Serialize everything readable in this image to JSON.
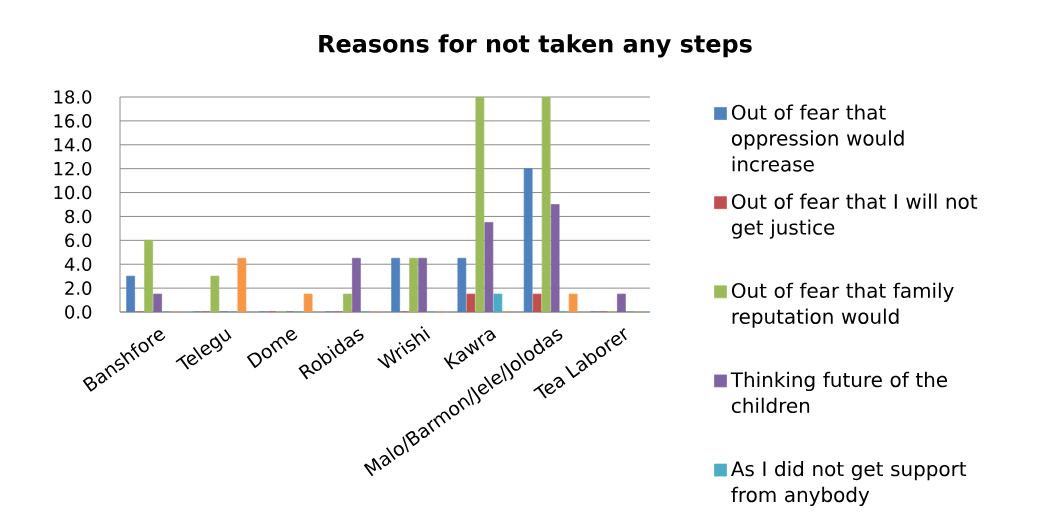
{
  "chart_data": {
    "type": "bar",
    "title": "Reasons for not taken any steps",
    "categories": [
      "Banshfore",
      "Telegu",
      "Dome",
      "Robidas",
      "Wrishi",
      "Kawra",
      "Malo/Barmon/Jele/Jolodas",
      "Tea Laborer"
    ],
    "series": [
      {
        "name": "Out of fear that oppression would increase",
        "color": "#4f81bd",
        "values": [
          3,
          0,
          0,
          0,
          4.5,
          4.5,
          12,
          0
        ]
      },
      {
        "name": "Out of fear that I will not get justice",
        "color": "#c0504d",
        "values": [
          0,
          0,
          0,
          0,
          0,
          1.5,
          1.5,
          0
        ]
      },
      {
        "name": "Out of fear that family reputation would",
        "color": "#9bbb59",
        "values": [
          6,
          3,
          0,
          1.5,
          4.5,
          18,
          18,
          0
        ]
      },
      {
        "name": "Thinking future of the children",
        "color": "#8064a2",
        "values": [
          1.5,
          0,
          0,
          4.5,
          4.5,
          7.5,
          9,
          1.5
        ]
      },
      {
        "name": "As I did not get support from anybody",
        "color": "#4bacc6",
        "values": [
          0,
          0,
          0,
          0,
          0,
          1.5,
          0,
          0
        ]
      },
      {
        "color": "#f79646",
        "values": [
          0,
          4.5,
          1.5,
          0,
          0,
          0,
          1.5,
          0
        ]
      }
    ],
    "ylim": [
      0,
      18
    ],
    "yticks": [
      {
        "value": 0,
        "label": "0.0"
      },
      {
        "value": 2,
        "label": "2.0"
      },
      {
        "value": 4,
        "label": "4.0"
      },
      {
        "value": 6,
        "label": "6.0"
      },
      {
        "value": 8,
        "label": "8.0"
      },
      {
        "value": 10,
        "label": "10.0"
      },
      {
        "value": 12,
        "label": "12.0"
      },
      {
        "value": 14,
        "label": "14.0"
      },
      {
        "value": 16,
        "label": "16.0"
      },
      {
        "value": 18,
        "label": "18.0"
      }
    ],
    "grid": "y",
    "legend": "right"
  }
}
